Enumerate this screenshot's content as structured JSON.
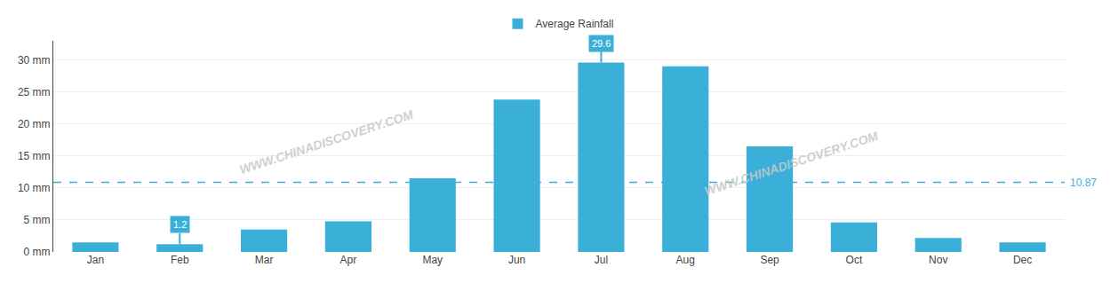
{
  "chart_data": {
    "type": "bar",
    "categories": [
      "Jan",
      "Feb",
      "Mar",
      "Apr",
      "May",
      "Jun",
      "Jul",
      "Aug",
      "Sep",
      "Oct",
      "Nov",
      "Dec"
    ],
    "series": [
      {
        "name": "Average Rainfall",
        "color": "#3ab0d8",
        "values": [
          1.5,
          1.2,
          3.5,
          4.8,
          11.5,
          23.8,
          29.6,
          29.0,
          16.5,
          4.6,
          2.2,
          1.5
        ]
      }
    ],
    "ylim": [
      0,
      33
    ],
    "yticks": [
      {
        "value": 0,
        "label": "0 mm"
      },
      {
        "value": 5,
        "label": "5 mm"
      },
      {
        "value": 10,
        "label": "10 mm"
      },
      {
        "value": 15,
        "label": "15 mm"
      },
      {
        "value": 20,
        "label": "20 mm"
      },
      {
        "value": 25,
        "label": "25 mm"
      },
      {
        "value": 30,
        "label": "30 mm"
      }
    ],
    "grid": true,
    "legend": "top",
    "average": {
      "value": 10.87,
      "label": "10.87",
      "color": "#3ab0d8"
    },
    "annotations": [
      {
        "text": "29.6",
        "x": "Jul",
        "y": 29.6
      },
      {
        "text": "1.2",
        "x": "Feb",
        "y": 1.2
      }
    ],
    "watermarks": [
      "WWW.CHINADISCOVERY.COM",
      "WWW.CHINADISCOVERY.COM"
    ]
  }
}
